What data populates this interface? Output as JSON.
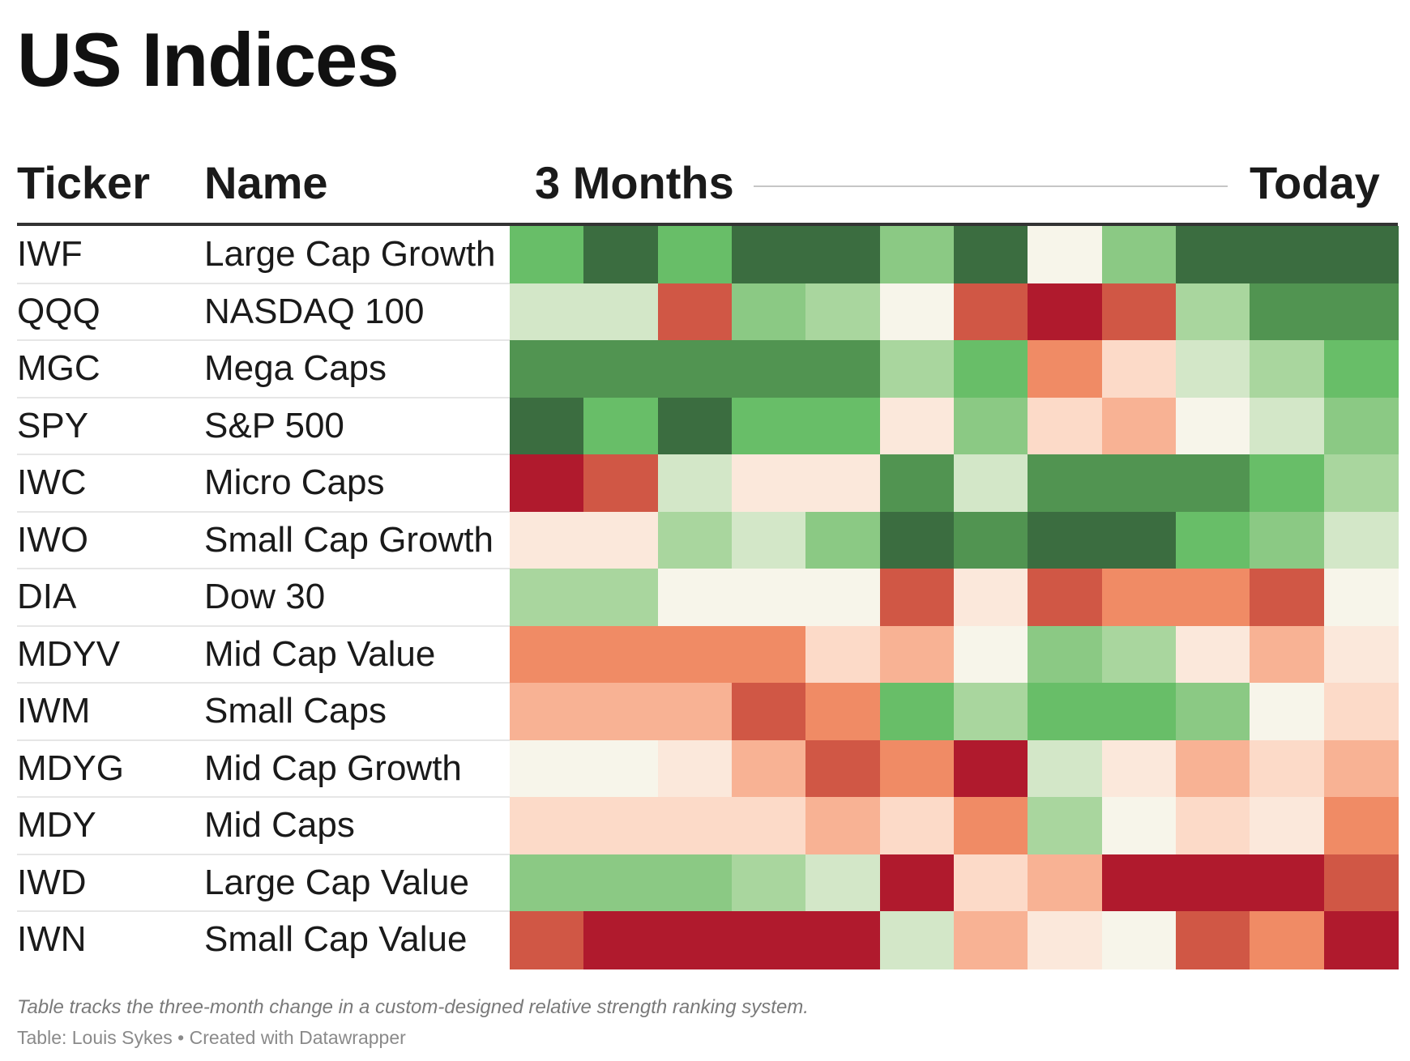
{
  "title": "US Indices",
  "columns": {
    "ticker": "Ticker",
    "name": "Name",
    "from": "3 Months",
    "to": "Today"
  },
  "footer": {
    "note": "Table tracks the three-month change in a custom-designed relative strength ranking system.",
    "credit": "Table: Louis Sykes • Created with Datawrapper"
  },
  "palette": [
    "#b01a2d",
    "#d05745",
    "#f08b65",
    "#f8b294",
    "#fcdac8",
    "#fbe8db",
    "#f7f5ea",
    "#d3e7c8",
    "#a9d69e",
    "#8bc984",
    "#68be68",
    "#519451",
    "#3b6d40"
  ],
  "chart_data": {
    "type": "heatmap",
    "title": "US Indices",
    "columns": 12,
    "rows": [
      {
        "ticker": "IWF",
        "name": "Large Cap Growth",
        "levels": [
          10,
          12,
          10,
          12,
          12,
          9,
          12,
          6,
          9,
          12,
          12,
          12
        ]
      },
      {
        "ticker": "QQQ",
        "name": "NASDAQ 100",
        "levels": [
          7,
          7,
          1,
          9,
          8,
          6,
          1,
          0,
          1,
          8,
          11,
          11
        ]
      },
      {
        "ticker": "MGC",
        "name": "Mega Caps",
        "levels": [
          11,
          11,
          11,
          11,
          11,
          8,
          10,
          2,
          4,
          7,
          8,
          10
        ]
      },
      {
        "ticker": "SPY",
        "name": "S&P 500",
        "levels": [
          12,
          10,
          12,
          10,
          10,
          5,
          9,
          4,
          3,
          6,
          7,
          9
        ]
      },
      {
        "ticker": "IWC",
        "name": "Micro Caps",
        "levels": [
          0,
          1,
          7,
          5,
          5,
          11,
          7,
          11,
          11,
          11,
          10,
          8
        ]
      },
      {
        "ticker": "IWO",
        "name": "Small Cap Growth",
        "levels": [
          5,
          5,
          8,
          7,
          9,
          12,
          11,
          12,
          12,
          10,
          9,
          7
        ]
      },
      {
        "ticker": "DIA",
        "name": "Dow 30",
        "levels": [
          8,
          8,
          6,
          6,
          6,
          1,
          5,
          1,
          2,
          2,
          1,
          6
        ]
      },
      {
        "ticker": "MDYV",
        "name": "Mid Cap Value",
        "levels": [
          2,
          2,
          2,
          2,
          4,
          3,
          6,
          9,
          8,
          5,
          3,
          5
        ]
      },
      {
        "ticker": "IWM",
        "name": "Small Caps",
        "levels": [
          3,
          3,
          3,
          1,
          2,
          10,
          8,
          10,
          10,
          9,
          6,
          4
        ]
      },
      {
        "ticker": "MDYG",
        "name": "Mid Cap Growth",
        "levels": [
          6,
          6,
          5,
          3,
          1,
          2,
          0,
          7,
          5,
          3,
          4,
          3
        ]
      },
      {
        "ticker": "MDY",
        "name": "Mid Caps",
        "levels": [
          4,
          4,
          4,
          4,
          3,
          4,
          2,
          8,
          6,
          4,
          5,
          2
        ]
      },
      {
        "ticker": "IWD",
        "name": "Large Cap Value",
        "levels": [
          9,
          9,
          9,
          8,
          7,
          0,
          4,
          3,
          0,
          0,
          0,
          1
        ]
      },
      {
        "ticker": "IWN",
        "name": "Small Cap Value",
        "levels": [
          1,
          0,
          0,
          0,
          0,
          7,
          3,
          5,
          6,
          1,
          2,
          0
        ]
      }
    ]
  }
}
